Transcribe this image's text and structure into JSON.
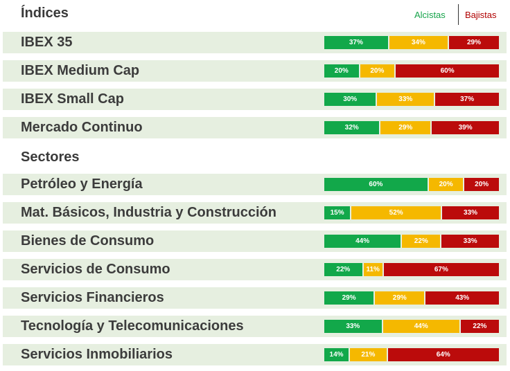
{
  "headings": {
    "indices": "Índices",
    "sectors": "Sectores"
  },
  "legend": {
    "up": "Alcistas",
    "down": "Bajistas"
  },
  "colors": {
    "up": "#12a84a",
    "flat": "#f5b800",
    "down": "#bb0b0b",
    "row_bg": "#e6efe0"
  },
  "chart_data": {
    "type": "bar",
    "orientation": "horizontal",
    "stacked": true,
    "normalized": true,
    "legend": [
      "Alcistas",
      "Bajistas"
    ],
    "groups": [
      {
        "title": "Índices",
        "rows": [
          {
            "label": "IBEX 35",
            "up": 37,
            "flat": 34,
            "down": 29
          },
          {
            "label": "IBEX Medium Cap",
            "up": 20,
            "flat": 20,
            "down": 60
          },
          {
            "label": "IBEX Small Cap",
            "up": 30,
            "flat": 33,
            "down": 37
          },
          {
            "label": "Mercado Continuo",
            "up": 32,
            "flat": 29,
            "down": 39
          }
        ]
      },
      {
        "title": "Sectores",
        "rows": [
          {
            "label": "Petróleo y Energía",
            "up": 60,
            "flat": 20,
            "down": 20
          },
          {
            "label": "Mat. Básicos, Industria y Construcción",
            "up": 15,
            "flat": 52,
            "down": 33
          },
          {
            "label": "Bienes de Consumo",
            "up": 44,
            "flat": 22,
            "down": 33
          },
          {
            "label": "Servicios de Consumo",
            "up": 22,
            "flat": 11,
            "down": 67
          },
          {
            "label": "Servicios Financieros",
            "up": 29,
            "flat": 29,
            "down": 43
          },
          {
            "label": "Tecnología y Telecomunicaciones",
            "up": 33,
            "flat": 44,
            "down": 22
          },
          {
            "label": "Servicios Inmobiliarios",
            "up": 14,
            "flat": 21,
            "down": 64
          }
        ]
      }
    ]
  }
}
